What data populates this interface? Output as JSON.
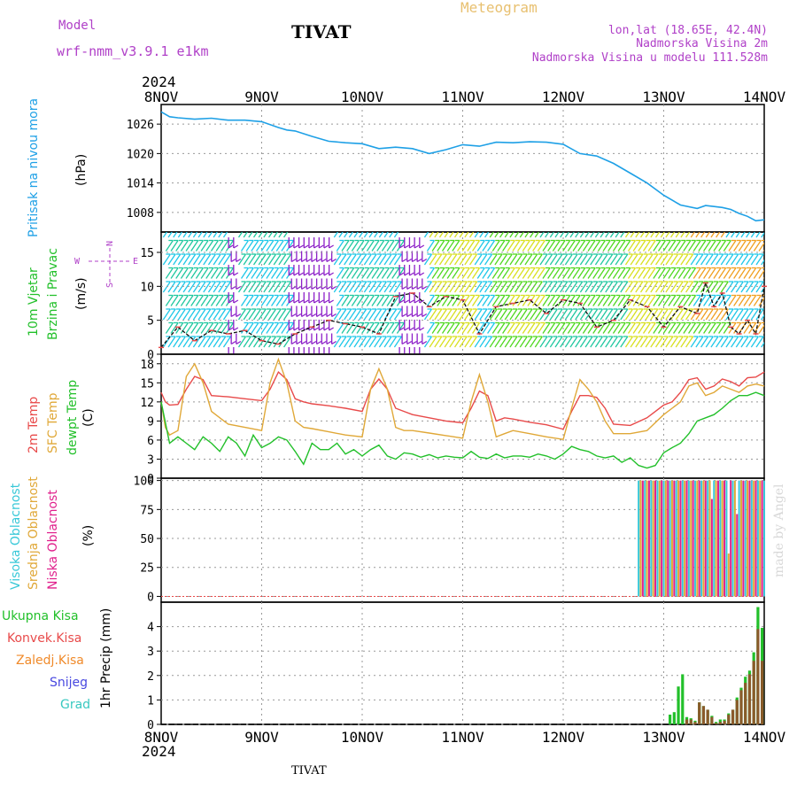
{
  "header": {
    "model_label": "Model",
    "model_name": "wrf-nmm_v3.9.1 e1km",
    "station": "TIVAT",
    "meteogram": "Meteogram",
    "lonlat": "lon,lat (18.65E, 42.4N)",
    "elevation": "Nadmorska Visina 2m",
    "model_elevation": "Nadmorska Visina u modelu 111.528m",
    "footer_station": "TIVAT",
    "credit": "made by Angel"
  },
  "time_axis": {
    "year": "2024",
    "labels": [
      "8NOV",
      "9NOV",
      "10NOV",
      "11NOV",
      "12NOV",
      "13NOV",
      "14NOV"
    ]
  },
  "colors": {
    "pressure": "#1ea0e6",
    "temp2m": "#e84a4a",
    "sfc_temp": "#e0a838",
    "dewpoint": "#22c02a",
    "high_cloud": "#38c8d8",
    "mid_cloud": "#e0a838",
    "low_cloud": "#e0208c",
    "total_precip": "#22c02a",
    "conv_precip": "#e84a4a",
    "frozen_precip": "#f08a2a",
    "snow": "#4848e0",
    "hail": "#38c8c0",
    "wind_purple": "#8c1ec8",
    "wind_cyan": "#1ec8e8",
    "wind_teal": "#20c8a0",
    "wind_green": "#50d820",
    "wind_yellow": "#d8e020",
    "wind_orange": "#f0a020"
  },
  "panels": {
    "pressure": {
      "ylabel": "Pritisak na nivou mora",
      "unit": "(hPa)",
      "yticks": [
        1008,
        1014,
        1020,
        1026
      ]
    },
    "wind": {
      "ylabel1": "10m Vjetar",
      "ylabel2": "Brzina i Pravac",
      "unit": "(m/s)",
      "yticks": [
        0,
        5,
        10,
        15
      ],
      "compass": {
        "n": "N",
        "s": "S",
        "e": "E",
        "w": "W"
      }
    },
    "temperature": {
      "label_2m": "2m Temp",
      "label_sfc": "SFC Temp",
      "label_dew": "dewpt Temp",
      "unit": "(C)",
      "yticks": [
        0,
        3,
        6,
        9,
        12,
        15,
        18
      ]
    },
    "cloud": {
      "label_high": "Visoka Oblacnost",
      "label_mid": "Srednja Oblacnost",
      "label_low": "Niska Oblacnost",
      "unit": "(%)",
      "yticks": [
        0,
        25,
        50,
        75,
        100
      ]
    },
    "precip": {
      "legend": [
        "Ukupna Kisa",
        "Konvek.Kisa",
        "Zaledj.Kisa",
        "Snijeg",
        "Grad"
      ],
      "ylabel": "1hr Precip (mm)",
      "yticks": [
        0,
        1,
        2,
        3,
        4
      ]
    }
  },
  "chart_data": [
    {
      "type": "line",
      "panel": "pressure",
      "ylim": [
        1004,
        1030
      ],
      "xlim_hours": [
        0,
        144
      ],
      "series": [
        {
          "name": "Pritisak na nivou mora",
          "x": [
            0,
            2,
            4,
            8,
            12,
            16,
            20,
            24,
            28,
            30,
            32,
            36,
            40,
            44,
            48,
            52,
            56,
            60,
            64,
            68,
            72,
            76,
            80,
            84,
            88,
            92,
            96,
            100,
            104,
            108,
            112,
            116,
            120,
            124,
            128,
            130,
            132,
            134,
            136,
            138,
            140,
            142,
            144
          ],
          "y": [
            1028.5,
            1027.5,
            1027.3,
            1027.0,
            1027.2,
            1026.8,
            1026.8,
            1026.5,
            1025.3,
            1024.8,
            1024.6,
            1023.5,
            1022.5,
            1022.2,
            1022.0,
            1021.0,
            1021.3,
            1021.0,
            1020.0,
            1020.8,
            1021.8,
            1021.5,
            1022.3,
            1022.2,
            1022.4,
            1022.3,
            1021.9,
            1020.0,
            1019.5,
            1018.0,
            1016.0,
            1014.0,
            1011.5,
            1009.5,
            1008.8,
            1009.4,
            1009.2,
            1009.0,
            1008.6,
            1007.8,
            1007.2,
            1006.3,
            1006.5
          ]
        }
      ]
    },
    {
      "type": "line",
      "panel": "wind_speed",
      "ylim": [
        0,
        18
      ],
      "xlim_hours": [
        0,
        144
      ],
      "series": [
        {
          "name": "Brzina",
          "x": [
            0,
            4,
            8,
            12,
            16,
            20,
            24,
            28,
            32,
            36,
            40,
            44,
            48,
            52,
            56,
            60,
            64,
            68,
            72,
            76,
            80,
            84,
            88,
            92,
            96,
            100,
            104,
            108,
            112,
            116,
            120,
            124,
            128,
            130,
            132,
            134,
            136,
            138,
            140,
            142,
            144
          ],
          "y": [
            1,
            4,
            2,
            3.5,
            3,
            3.5,
            2,
            1.5,
            3,
            4,
            5,
            4.5,
            4,
            3,
            8.5,
            9,
            7,
            8.5,
            8,
            3,
            7,
            7.5,
            8,
            6,
            8,
            7.5,
            4,
            5,
            8,
            7,
            4,
            7,
            6,
            10.5,
            7,
            9,
            4,
            3,
            5,
            3,
            10
          ]
        }
      ]
    },
    {
      "type": "line",
      "panel": "temperature",
      "ylim": [
        0,
        19.5
      ],
      "xlim_hours": [
        0,
        144
      ],
      "series": [
        {
          "name": "2m Temp",
          "x": [
            0,
            1,
            2,
            4,
            6,
            8,
            10,
            12,
            16,
            20,
            24,
            26,
            28,
            30,
            32,
            34,
            36,
            40,
            44,
            48,
            50,
            52,
            54,
            56,
            58,
            60,
            64,
            68,
            72,
            74,
            76,
            78,
            80,
            82,
            84,
            88,
            92,
            96,
            98,
            100,
            102,
            104,
            106,
            108,
            112,
            116,
            120,
            122,
            124,
            126,
            128,
            130,
            132,
            134,
            136,
            138,
            140,
            142,
            144
          ],
          "y": [
            13.5,
            12,
            11.5,
            11.6,
            14,
            16,
            15.5,
            13,
            12.8,
            12.5,
            12.2,
            14,
            16.7,
            15.5,
            12.5,
            12,
            11.7,
            11.4,
            11,
            10.5,
            14,
            15.6,
            14,
            11,
            10.5,
            10,
            9.5,
            9,
            8.7,
            11,
            13.7,
            13,
            9,
            9.5,
            9.3,
            8.8,
            8.4,
            7.7,
            10.5,
            13,
            13,
            12.7,
            11,
            8.5,
            8.3,
            9.5,
            11.5,
            12,
            13.5,
            15.5,
            15.8,
            14,
            14.5,
            15.6,
            15.2,
            14.5,
            15.8,
            15.9,
            16.7
          ]
        },
        {
          "name": "SFC Temp",
          "x": [
            0,
            1,
            2,
            4,
            6,
            8,
            10,
            12,
            16,
            20,
            24,
            26,
            28,
            30,
            32,
            34,
            36,
            40,
            44,
            48,
            50,
            52,
            54,
            56,
            58,
            60,
            64,
            68,
            72,
            74,
            76,
            78,
            80,
            82,
            84,
            88,
            92,
            96,
            98,
            100,
            102,
            104,
            106,
            108,
            112,
            116,
            120,
            122,
            124,
            126,
            128,
            130,
            132,
            134,
            136,
            138,
            140,
            142,
            144
          ],
          "y": [
            12,
            8,
            6.8,
            7.5,
            16,
            18,
            15,
            10.5,
            8.5,
            8,
            7.5,
            15,
            18.7,
            15,
            9,
            8,
            7.8,
            7.3,
            6.8,
            6.5,
            14,
            17.2,
            14,
            8,
            7.5,
            7.5,
            7.1,
            6.7,
            6.3,
            12,
            16.3,
            12,
            6.5,
            7,
            7.5,
            7,
            6.5,
            6.1,
            11,
            15.5,
            14,
            12,
            9,
            7,
            7,
            7.5,
            10,
            11,
            12,
            14.5,
            15,
            13,
            13.5,
            14.5,
            14,
            13.5,
            14.5,
            14.8,
            14.5
          ]
        },
        {
          "name": "dewpt Temp",
          "x": [
            0,
            2,
            4,
            6,
            8,
            10,
            12,
            14,
            16,
            18,
            20,
            22,
            24,
            26,
            28,
            30,
            32,
            34,
            36,
            38,
            40,
            42,
            44,
            46,
            48,
            50,
            52,
            54,
            56,
            58,
            60,
            62,
            64,
            66,
            68,
            70,
            72,
            74,
            76,
            78,
            80,
            82,
            84,
            86,
            88,
            90,
            92,
            94,
            96,
            98,
            100,
            102,
            104,
            106,
            108,
            110,
            112,
            114,
            116,
            118,
            120,
            122,
            124,
            126,
            128,
            130,
            132,
            134,
            136,
            138,
            140,
            142,
            144
          ],
          "y": [
            12,
            5.5,
            6.5,
            5.5,
            4.5,
            6.5,
            5.5,
            4.2,
            6.5,
            5.5,
            3.5,
            6.8,
            4.8,
            5.5,
            6.5,
            6,
            4.2,
            2.2,
            5.5,
            4.5,
            4.5,
            5.5,
            3.8,
            4.5,
            3.5,
            4.5,
            5.2,
            3.5,
            3,
            4,
            3.8,
            3.3,
            3.7,
            3.2,
            3.5,
            3.3,
            3.2,
            4.2,
            3.3,
            3.1,
            3.8,
            3.2,
            3.5,
            3.5,
            3.3,
            3.8,
            3.5,
            3,
            3.8,
            5,
            4.5,
            4.2,
            3.5,
            3.2,
            3.5,
            2.5,
            3.2,
            2,
            1.6,
            2,
            4,
            4.8,
            5.5,
            7,
            9,
            9.5,
            10,
            11,
            12.2,
            13,
            13,
            13.5,
            13
          ]
        }
      ]
    },
    {
      "type": "bar",
      "panel": "cloud",
      "ylim": [
        -5,
        102
      ],
      "xlim_hours": [
        0,
        144
      ],
      "series": [
        {
          "name": "Visoka Oblacnost",
          "x_start": 114,
          "x_end": 144,
          "value": 100
        },
        {
          "name": "Srednja Oblacnost",
          "x_start": 114,
          "x_end": 144,
          "value": 100
        },
        {
          "name": "Niska Oblacnost",
          "x_start": 114,
          "x_end": 144,
          "value": 100
        }
      ],
      "dips": [
        {
          "x": 131.5,
          "value": 84
        },
        {
          "x": 135.5,
          "value": 37
        },
        {
          "x": 137.5,
          "value": 71
        }
      ]
    },
    {
      "type": "bar",
      "panel": "precip",
      "ylim": [
        0,
        5
      ],
      "xlim_hours": [
        0,
        144
      ],
      "series": [
        {
          "name": "Ukupna Kisa",
          "x": [
            121.5,
            122.5,
            123.5,
            124.5,
            125.5,
            126.5,
            127.5,
            128.5,
            129.5,
            130.5,
            131.5,
            132.5,
            133.5,
            134.5,
            135.5,
            136.5,
            137.5,
            138.5,
            139.5,
            140.5,
            141.5,
            142.5,
            143.5
          ],
          "y": [
            0.4,
            0.5,
            1.55,
            2.05,
            0.3,
            0.25,
            0.15,
            0.9,
            0.75,
            0.6,
            0.35,
            0.1,
            0.2,
            0.2,
            0.45,
            0.6,
            1.1,
            1.5,
            1.95,
            2.2,
            2.95,
            4.8,
            3.95
          ]
        },
        {
          "name": "Konvek.Kisa",
          "x": [
            121.5,
            122.5,
            123.5,
            124.5,
            125.5,
            126.5,
            127.5,
            128.5,
            129.5,
            130.5,
            131.5,
            132.5,
            133.5,
            134.5,
            135.5,
            136.5,
            137.5,
            138.5,
            139.5,
            140.5,
            141.5,
            142.5,
            143.5
          ],
          "y": [
            0,
            0,
            0,
            0,
            0.2,
            0.2,
            0.1,
            0.9,
            0.75,
            0.6,
            0.3,
            0.05,
            0.1,
            0.15,
            0.4,
            0.6,
            1,
            1.4,
            1.7,
            2.05,
            2.6,
            3.9,
            2.6
          ]
        }
      ]
    }
  ]
}
